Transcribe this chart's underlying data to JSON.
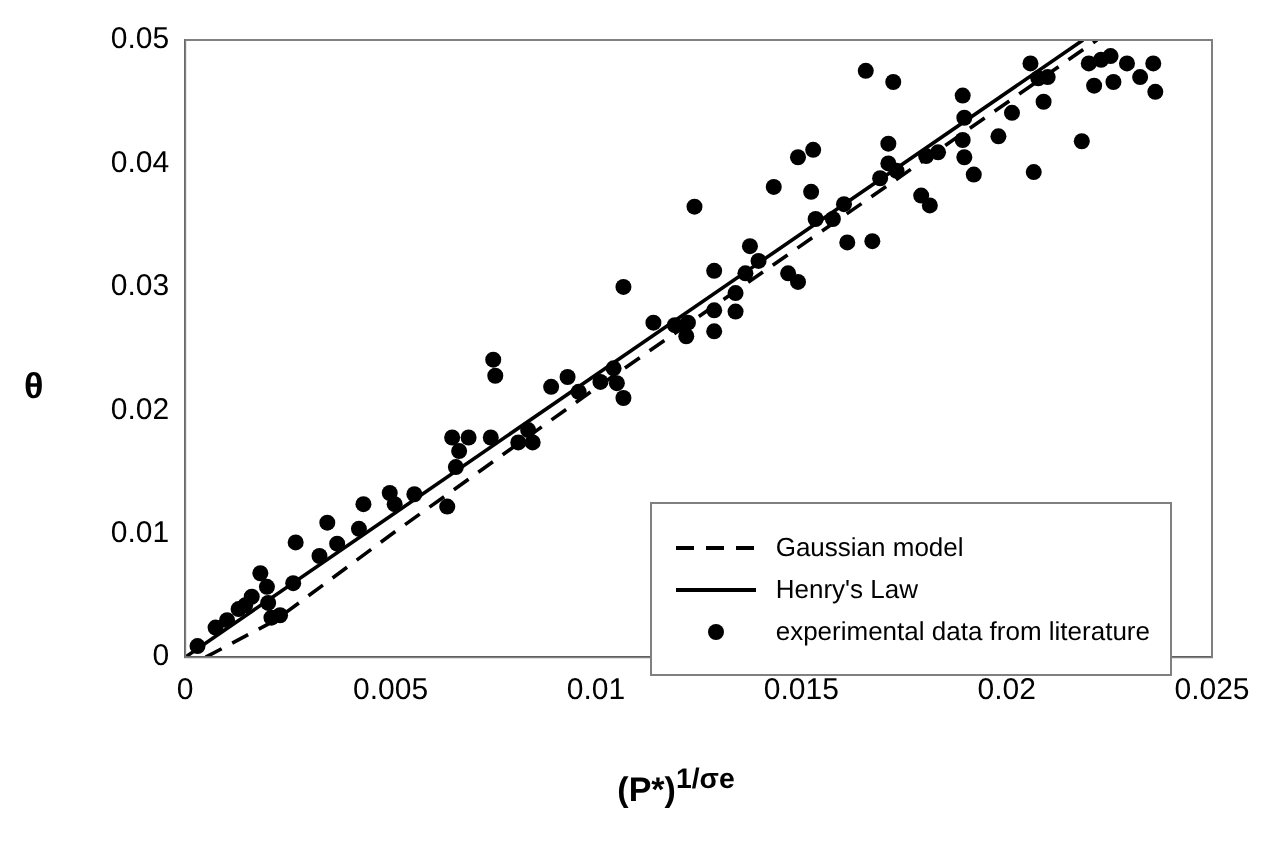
{
  "chart_data": {
    "type": "scatter",
    "xlabel": "(P*)$^{1/σe}$",
    "ylabel": "θ",
    "xlim": [
      0,
      0.025
    ],
    "xticks": [
      0,
      0.005,
      0.01,
      0.015,
      0.02,
      0.025
    ],
    "ylim": [
      0,
      0.05
    ],
    "yticks": [
      0,
      0.01,
      0.02,
      0.03,
      0.04,
      0.05
    ],
    "grid": false,
    "legend": "bottom right",
    "series": [
      {
        "name": "Gaussian model",
        "type": "line",
        "color": "#000000",
        "line_style": "dashed",
        "marker": "none",
        "x": [
          0.0005,
          0.0022,
          0.005,
          0.01,
          0.0222
        ],
        "values": [
          0,
          0.003,
          0.0099,
          0.0218,
          0.05
        ]
      },
      {
        "name": "Henry's Law",
        "type": "line",
        "color": "#000000",
        "line_style": "solid",
        "marker": "none",
        "x": [
          0,
          0.02186
        ],
        "values": [
          0,
          0.05
        ]
      },
      {
        "name": "experimental data from literature",
        "type": "scatter",
        "color": "#000000",
        "marker": "circle",
        "x": [
          0.01657,
          0.01724,
          0.02058,
          0.02077,
          0.021,
          0.0209,
          0.02013,
          0.0198,
          0.01893,
          0.01897,
          0.01893,
          0.01897,
          0.0192,
          0.02066,
          0.02183,
          0.022,
          0.0223,
          0.02253,
          0.02293,
          0.02357,
          0.02213,
          0.0226,
          0.02325,
          0.02362,
          0.01712,
          0.01712,
          0.01692,
          0.01732,
          0.01804,
          0.01833,
          0.01792,
          0.01813,
          0.01492,
          0.01529,
          0.01433,
          0.01524,
          0.01535,
          0.01577,
          0.01604,
          0.01612,
          0.01673,
          0.0124,
          0.01375,
          0.01396,
          0.01364,
          0.01288,
          0.01468,
          0.01492,
          0.0134,
          0.01288,
          0.0134,
          0.01288,
          0.0114,
          0.01192,
          0.01224,
          0.0122,
          0.01067,
          0.01043,
          0.01051,
          0.01067,
          0.0075,
          0.00755,
          0.00891,
          0.00931,
          0.00958,
          0.01011,
          0.0065,
          0.0069,
          0.00744,
          0.00667,
          0.00811,
          0.00846,
          0.00835,
          0.00659,
          0.00638,
          0.00498,
          0.0051,
          0.00558,
          0.00434,
          0.00346,
          0.0037,
          0.00423,
          0.00269,
          0.00327,
          0.00263,
          0.00183,
          0.00199,
          0.00162,
          0.0013,
          0.00102,
          0.00074,
          0.00231,
          0.0021,
          0.00146,
          0.00202,
          0.0003
        ],
        "values": [
          0.0475,
          0.0466,
          0.0481,
          0.0469,
          0.047,
          0.045,
          0.0441,
          0.0422,
          0.0455,
          0.0437,
          0.0419,
          0.0405,
          0.0391,
          0.0393,
          0.0418,
          0.0481,
          0.0484,
          0.0487,
          0.0481,
          0.0481,
          0.0463,
          0.0466,
          0.047,
          0.0458,
          0.0416,
          0.04,
          0.0388,
          0.0394,
          0.0406,
          0.0409,
          0.0374,
          0.0366,
          0.0405,
          0.0411,
          0.0381,
          0.0377,
          0.0355,
          0.0355,
          0.0367,
          0.0336,
          0.0337,
          0.0365,
          0.0333,
          0.0321,
          0.0311,
          0.0313,
          0.0311,
          0.0304,
          0.0295,
          0.0281,
          0.028,
          0.0264,
          0.0271,
          0.0269,
          0.0271,
          0.026,
          0.03,
          0.0234,
          0.0222,
          0.021,
          0.0241,
          0.0228,
          0.0219,
          0.0227,
          0.0215,
          0.0223,
          0.0178,
          0.0178,
          0.0178,
          0.0167,
          0.0174,
          0.0174,
          0.0184,
          0.0154,
          0.0122,
          0.0133,
          0.0124,
          0.0132,
          0.0124,
          0.0109,
          0.0092,
          0.0104,
          0.0093,
          0.0082,
          0.006,
          0.0068,
          0.0057,
          0.0049,
          0.0039,
          0.003,
          0.0024,
          0.0034,
          0.0032,
          0.0042,
          0.0044,
          0.0009
        ]
      }
    ]
  }
}
